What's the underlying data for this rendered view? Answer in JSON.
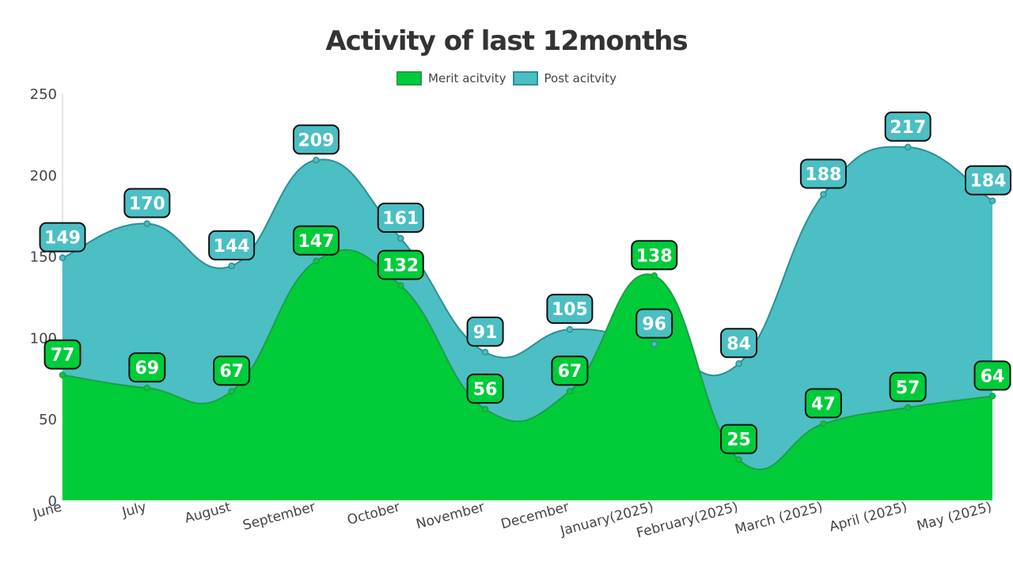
{
  "chart_data": {
    "type": "area",
    "title": "Activity of last 12months",
    "categories": [
      "June",
      "July",
      "August",
      "September",
      "October",
      "November",
      "December",
      "January(2025)",
      "February(2025)",
      "March (2025)",
      "April (2025)",
      "May (2025)"
    ],
    "series": [
      {
        "name": "Post acitvity",
        "values": [
          149,
          170,
          144,
          209,
          161,
          91,
          105,
          96,
          84,
          188,
          217,
          184
        ],
        "color": "#4BBFC3",
        "line_color": "#2E8F94"
      },
      {
        "name": "Merit acitvity",
        "values": [
          77,
          69,
          67,
          147,
          132,
          56,
          67,
          138,
          25,
          47,
          57,
          64
        ],
        "color": "#00CC3A",
        "line_color": "#1E9E45"
      }
    ],
    "y_ticks": [
      "0",
      "50",
      "100",
      "150",
      "200",
      "250"
    ],
    "ylim": [
      0,
      250
    ],
    "legend": [
      "Merit acitvity",
      "Post acitvity"
    ],
    "legend_position": "top",
    "grid": false,
    "data_labels": true
  }
}
